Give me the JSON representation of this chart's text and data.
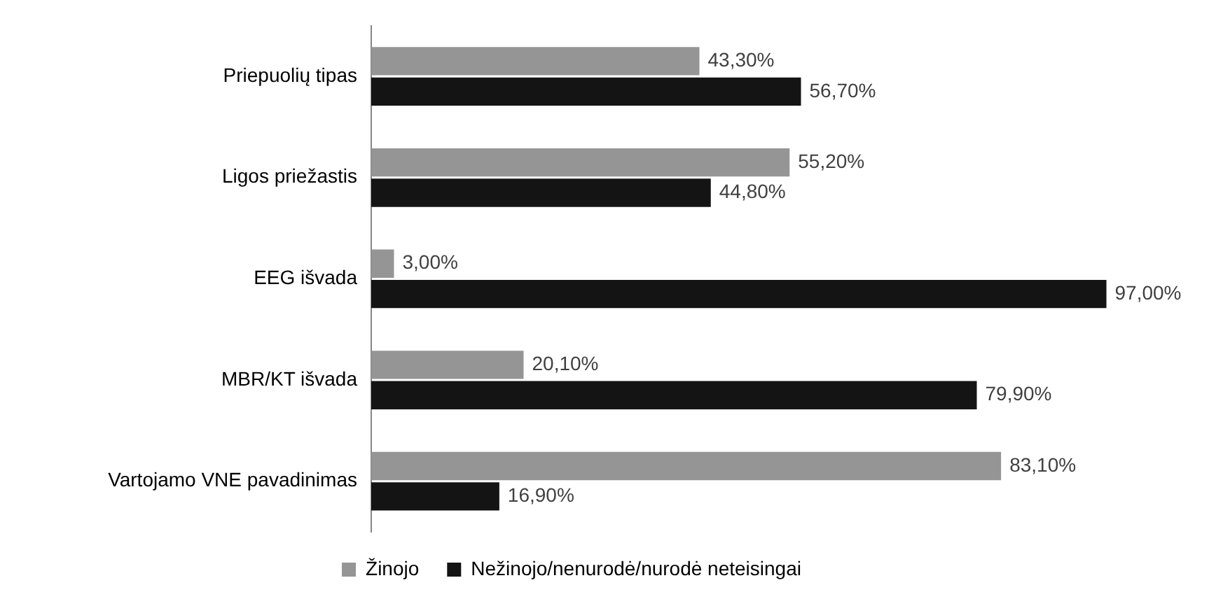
{
  "chart_data": {
    "type": "bar",
    "orientation": "horizontal",
    "categories": [
      "Priepuolių tipas",
      "Ligos priežastis",
      "EEG išvada",
      "MBR/KT išvada",
      "Vartojamo VNE pavadinimas"
    ],
    "series": [
      {
        "name": "Žinojo",
        "color": "#959595",
        "values": [
          43.3,
          55.2,
          3.0,
          20.1,
          83.1
        ],
        "value_labels": [
          "43,30%",
          "55,20%",
          "3,00%",
          "20,10%",
          "83,10%"
        ]
      },
      {
        "name": "Nežinojo/nenurodė/nurodė neteisingai",
        "color": "#141414",
        "values": [
          56.7,
          44.8,
          97.0,
          79.9,
          16.9
        ],
        "value_labels": [
          "56,70%",
          "44,80%",
          "97,00%",
          "79,90%",
          "16,90%"
        ]
      }
    ],
    "tick_labels": "y",
    "grid": false,
    "legend": "bottom"
  }
}
